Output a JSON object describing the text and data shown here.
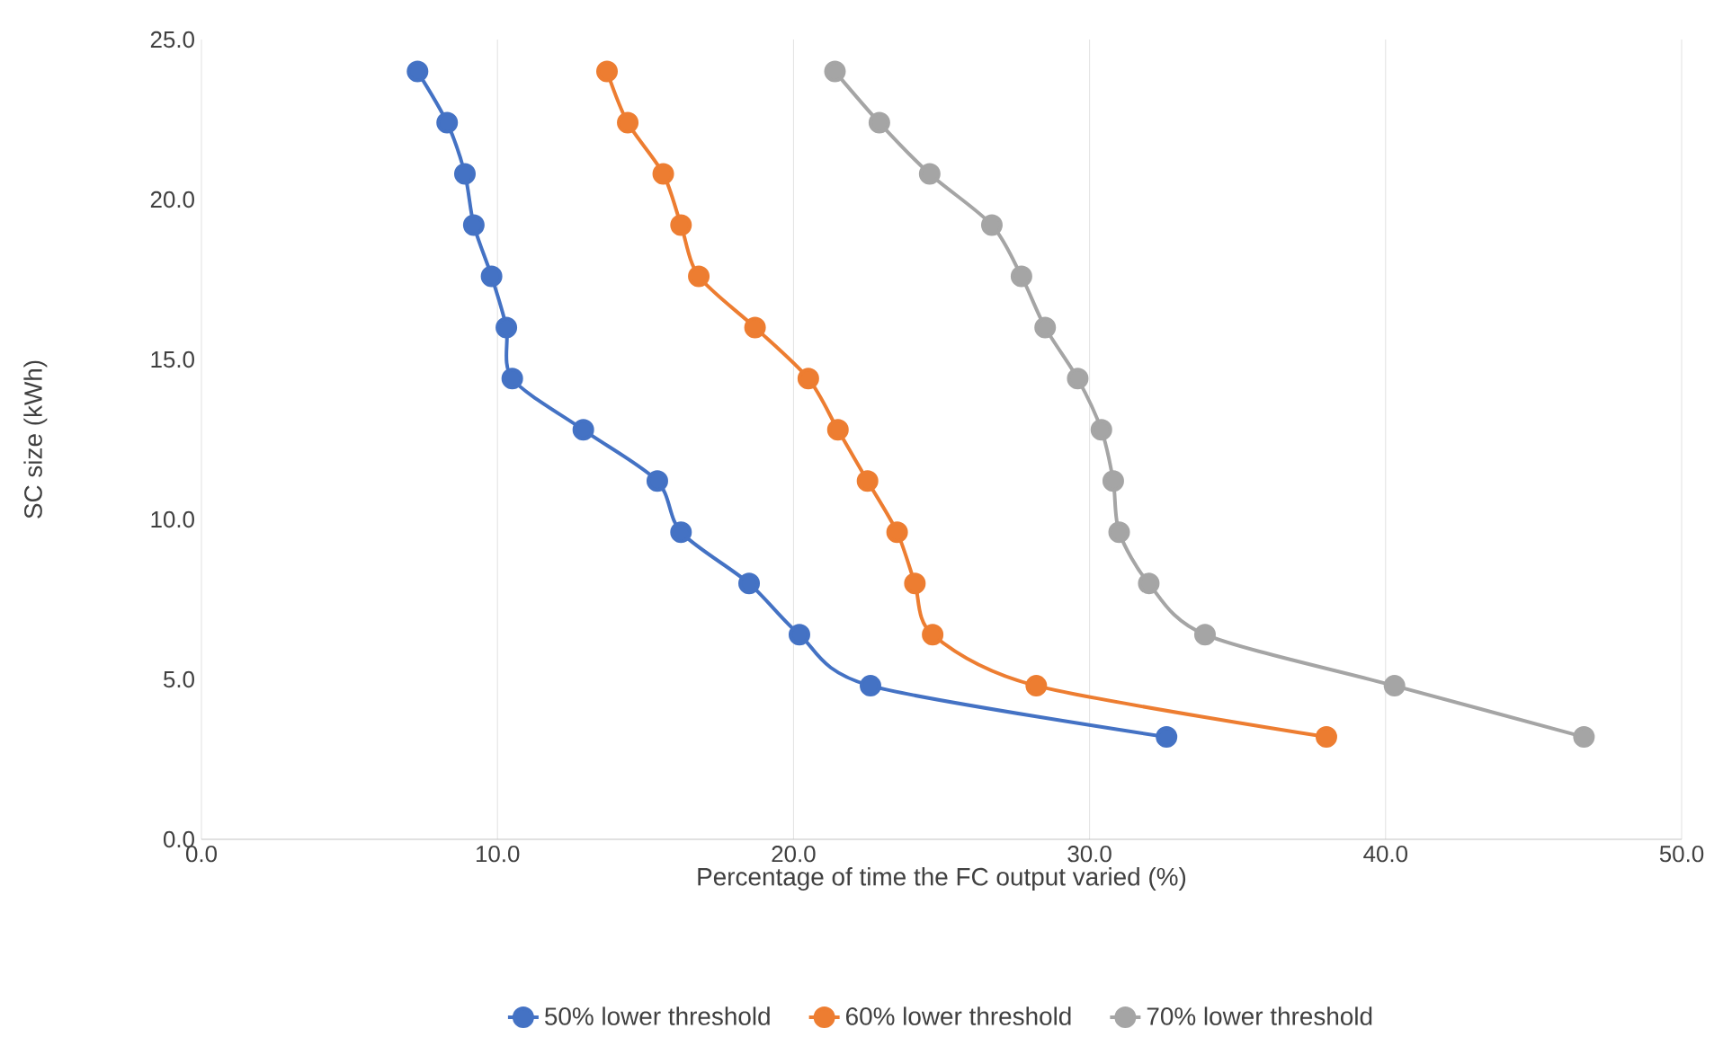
{
  "chart_data": {
    "type": "line",
    "xlabel": "Percentage of time the FC output varied (%)",
    "ylabel": "SC size (kWh)",
    "xlim": [
      0,
      50
    ],
    "ylim": [
      0,
      25
    ],
    "xticks": [
      {
        "value": 0,
        "label": "0.0"
      },
      {
        "value": 10,
        "label": "10.0"
      },
      {
        "value": 20,
        "label": "20.0"
      },
      {
        "value": 30,
        "label": "30.0"
      },
      {
        "value": 40,
        "label": "40.0"
      },
      {
        "value": 50,
        "label": "50.0"
      }
    ],
    "yticks": [
      {
        "value": 0,
        "label": "0.0"
      },
      {
        "value": 5,
        "label": "5.0"
      },
      {
        "value": 10,
        "label": "10.0"
      },
      {
        "value": 15,
        "label": "15.0"
      },
      {
        "value": 20,
        "label": "20.0"
      },
      {
        "value": 25,
        "label": "25.0"
      }
    ],
    "grid": "x",
    "legend": "bottom",
    "marker": "circle",
    "series": [
      {
        "name": "50% lower threshold",
        "color": "#4472c4",
        "x": [
          7.3,
          8.3,
          8.9,
          9.2,
          9.8,
          10.3,
          10.5,
          12.9,
          15.4,
          16.2,
          18.5,
          20.2,
          22.6,
          32.6
        ],
        "values": [
          24,
          22.4,
          20.8,
          19.2,
          17.6,
          16,
          14.4,
          12.8,
          11.2,
          9.6,
          8,
          6.4,
          4.8,
          3.2
        ]
      },
      {
        "name": "60% lower threshold",
        "color": "#ed7d31",
        "x": [
          13.7,
          14.4,
          15.6,
          16.2,
          16.8,
          18.7,
          20.5,
          21.5,
          22.5,
          23.5,
          24.1,
          24.7,
          28.2,
          38.0
        ],
        "values": [
          24,
          22.4,
          20.8,
          19.2,
          17.6,
          16,
          14.4,
          12.8,
          11.2,
          9.6,
          8,
          6.4,
          4.8,
          3.2
        ]
      },
      {
        "name": "70% lower threshold",
        "color": "#a5a5a5",
        "x": [
          21.4,
          22.9,
          24.6,
          26.7,
          27.7,
          28.5,
          29.6,
          30.4,
          30.8,
          31.0,
          32.0,
          33.9,
          40.3,
          46.7
        ],
        "values": [
          24,
          22.4,
          20.8,
          19.2,
          17.6,
          16,
          14.4,
          12.8,
          11.2,
          9.6,
          8,
          6.4,
          4.8,
          3.2
        ]
      }
    ]
  }
}
